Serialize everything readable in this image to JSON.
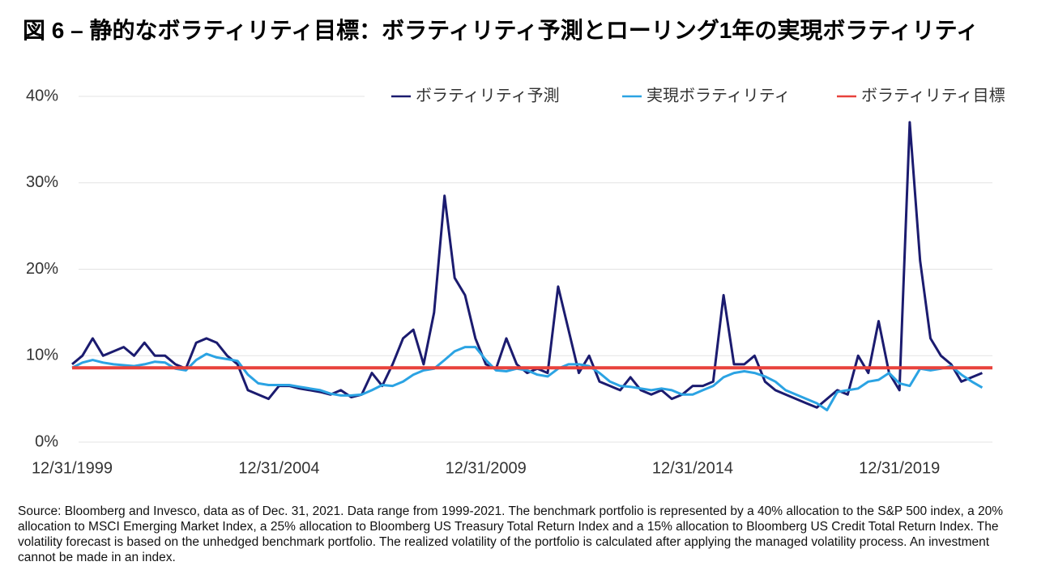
{
  "chart_data": {
    "type": "line",
    "title": "図 6 – 静的なボラティリティ目標：ボラティリティ予測とローリング1年の実現ボラティリティ",
    "source": "Source: Bloomberg and Invesco, data as of Dec. 31, 2021. Data range from 1999-2021. The benchmark portfolio is represented by a 40% allocation to the S&P 500 index, a 20% allocation to MSCI Emerging Market Index, a 25% allocation to Bloomberg US Treasury Total Return Index and a 15% allocation to Bloomberg US Credit Total Return Index. The volatility forecast is based on the unhedged benchmark portfolio. The realized volatility of the portfolio is calculated after applying the managed volatility process. An investment cannot be made in an index.",
    "x": [
      "1999-12-31",
      "2000-03-31",
      "2000-06-30",
      "2000-09-30",
      "2000-12-31",
      "2001-03-31",
      "2001-06-30",
      "2001-09-30",
      "2001-12-31",
      "2002-03-31",
      "2002-06-30",
      "2002-09-30",
      "2002-12-31",
      "2003-03-31",
      "2003-06-30",
      "2003-09-30",
      "2003-12-31",
      "2004-03-31",
      "2004-06-30",
      "2004-09-30",
      "2004-12-31",
      "2005-03-31",
      "2005-06-30",
      "2005-09-30",
      "2005-12-31",
      "2006-03-31",
      "2006-06-30",
      "2006-09-30",
      "2006-12-31",
      "2007-03-31",
      "2007-06-30",
      "2007-09-30",
      "2007-12-31",
      "2008-03-31",
      "2008-06-30",
      "2008-09-30",
      "2008-12-31",
      "2009-03-31",
      "2009-06-30",
      "2009-09-30",
      "2009-12-31",
      "2010-03-31",
      "2010-06-30",
      "2010-09-30",
      "2010-12-31",
      "2011-03-31",
      "2011-06-30",
      "2011-09-30",
      "2011-12-31",
      "2012-03-31",
      "2012-06-30",
      "2012-09-30",
      "2012-12-31",
      "2013-03-31",
      "2013-06-30",
      "2013-09-30",
      "2013-12-31",
      "2014-03-31",
      "2014-06-30",
      "2014-09-30",
      "2014-12-31",
      "2015-03-31",
      "2015-06-30",
      "2015-09-30",
      "2015-12-31",
      "2016-03-31",
      "2016-06-30",
      "2016-09-30",
      "2016-12-31",
      "2017-03-31",
      "2017-06-30",
      "2017-09-30",
      "2017-12-31",
      "2018-03-31",
      "2018-06-30",
      "2018-09-30",
      "2018-12-31",
      "2019-03-31",
      "2019-06-30",
      "2019-09-30",
      "2019-12-31",
      "2020-03-31",
      "2020-06-30",
      "2020-09-30",
      "2020-12-31",
      "2021-03-31",
      "2021-06-30",
      "2021-09-30",
      "2021-12-31"
    ],
    "series": [
      {
        "name": "ボラティリティ予測",
        "color": "#1b1b6f",
        "values": [
          9,
          10,
          12,
          10,
          10.5,
          11,
          10,
          11.5,
          10,
          10,
          9,
          8.5,
          11.5,
          12,
          11.5,
          10,
          9,
          6,
          5.5,
          5,
          6.5,
          6.5,
          6.2,
          6,
          5.8,
          5.5,
          6,
          5.2,
          5.5,
          8,
          6.5,
          9,
          12,
          13,
          9,
          15,
          28.5,
          19,
          17,
          12,
          9,
          8.5,
          12,
          9,
          8,
          8.5,
          8,
          18,
          13,
          8,
          10,
          7,
          6.5,
          6,
          7.5,
          6,
          5.5,
          6,
          5,
          5.5,
          6.5,
          6.5,
          7,
          17,
          9,
          9,
          10,
          7,
          6,
          5.5,
          5,
          4.5,
          4,
          5,
          6,
          5.5,
          10,
          8,
          14,
          8,
          6,
          37,
          21,
          12,
          10,
          9,
          7,
          7.5,
          8
        ]
      },
      {
        "name": "実現ボラティリティ",
        "color": "#2ba3e3",
        "values": [
          8.6,
          9.2,
          9.5,
          9.2,
          9,
          8.9,
          8.8,
          9,
          9.3,
          9.2,
          8.5,
          8.3,
          9.5,
          10.2,
          9.8,
          9.6,
          9.4,
          7.8,
          6.8,
          6.6,
          6.6,
          6.6,
          6.4,
          6.2,
          6,
          5.6,
          5.4,
          5.4,
          5.5,
          6,
          6.6,
          6.5,
          7,
          7.8,
          8.3,
          8.5,
          9.5,
          10.5,
          11,
          11,
          9.5,
          8.3,
          8.2,
          8.5,
          8.3,
          7.8,
          7.6,
          8.5,
          9,
          9,
          8.8,
          8,
          7,
          6.5,
          6.4,
          6.2,
          6,
          6.2,
          6,
          5.5,
          5.5,
          6,
          6.5,
          7.5,
          8,
          8.2,
          8,
          7.6,
          7,
          6,
          5.5,
          5,
          4.5,
          3.7,
          5.8,
          6,
          6.2,
          7,
          7.2,
          8,
          6.8,
          6.5,
          8.5,
          8.3,
          8.5,
          8.8,
          7.8,
          7,
          6.3
        ]
      }
    ],
    "target": {
      "name": "ボラティリティ目標",
      "color": "#e8423c",
      "value": 8.6
    },
    "xlim": [
      "1999-12-31",
      "2022-03-31"
    ],
    "xticks": [
      {
        "value": "1999-12-31",
        "label": "12/31/1999"
      },
      {
        "value": "2004-12-31",
        "label": "12/31/2004"
      },
      {
        "value": "2009-12-31",
        "label": "12/31/2009"
      },
      {
        "value": "2014-12-31",
        "label": "12/31/2014"
      },
      {
        "value": "2019-12-31",
        "label": "12/31/2019"
      }
    ],
    "ylim": [
      0,
      40
    ],
    "yticks": [
      {
        "value": 0,
        "label": "0%"
      },
      {
        "value": 10,
        "label": "10%"
      },
      {
        "value": 20,
        "label": "20%"
      },
      {
        "value": 30,
        "label": "30%"
      },
      {
        "value": 40,
        "label": "40%"
      }
    ],
    "grid": true,
    "legend": "top-right"
  }
}
